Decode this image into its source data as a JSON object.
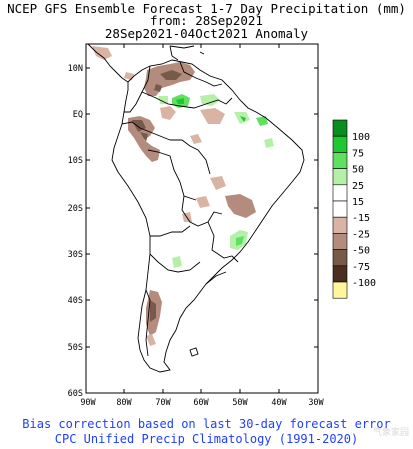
{
  "title": {
    "line1": "NCEP GFS Ensemble Forecast 1-7 Day Precipitation (mm)",
    "line2": "from: 28Sep2021",
    "line3": "28Sep2021-04Oct2021 Anomaly"
  },
  "map": {
    "lat_labels": [
      "10N",
      "EQ",
      "10S",
      "20S",
      "30S",
      "40S",
      "50S",
      "60S"
    ],
    "lon_labels": [
      "90W",
      "80W",
      "70W",
      "60W",
      "50W",
      "40W",
      "30W"
    ]
  },
  "legend": {
    "items": [
      {
        "label": "100",
        "color": "#0a8c1e"
      },
      {
        "label": "75",
        "color": "#1fc832"
      },
      {
        "label": "50",
        "color": "#5fe05f"
      },
      {
        "label": "25",
        "color": "#b4f0a8"
      },
      {
        "label": "15",
        "color": "#ffffff"
      },
      {
        "label": "-15",
        "color": "#ffffff"
      },
      {
        "label": "-25",
        "color": "#d9b4a5"
      },
      {
        "label": "-50",
        "color": "#b48c7d"
      },
      {
        "label": "-75",
        "color": "#785a4b"
      },
      {
        "label": "-100",
        "color": "#4b2d23"
      },
      {
        "label": "",
        "color": "#fff59b"
      }
    ]
  },
  "footer": {
    "line1": "Bias correction based on last 30-day forecast error",
    "line2": "CPC Unified Precip Climatology (1991-2020)"
  },
  "watermark": "气象家园"
}
